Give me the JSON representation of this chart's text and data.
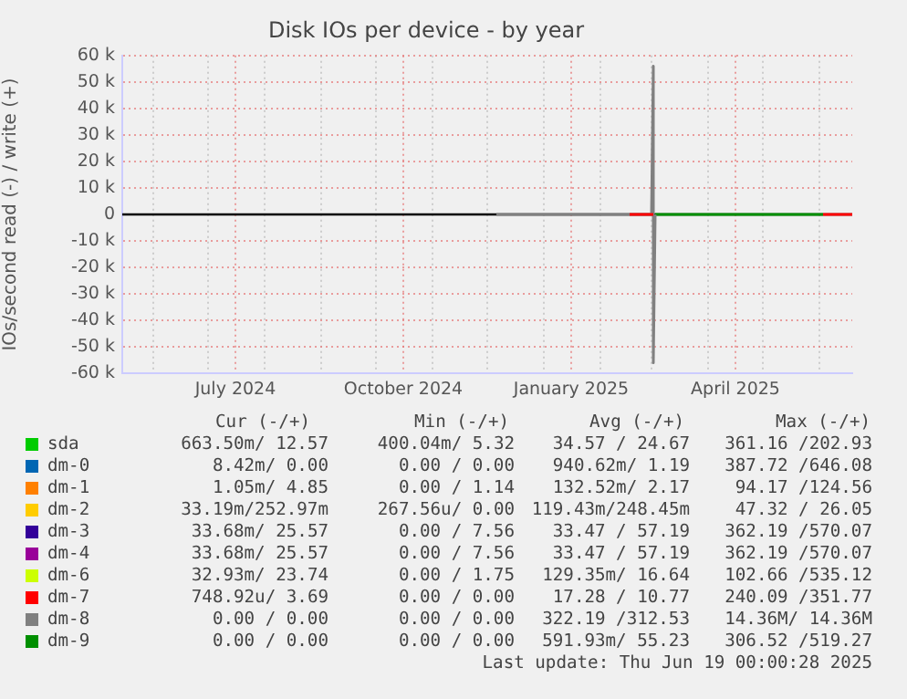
{
  "chart_data": {
    "type": "line",
    "title": "Disk IOs per device - by year",
    "ylabel": "IOs/second read (-) / write (+)",
    "xlim": [
      "2024-05-15",
      "2025-06-19"
    ],
    "xticks": [
      {
        "value": "2024-06-01",
        "label": null
      },
      {
        "value": "2024-07-01",
        "label": null
      },
      {
        "value": "2024-07-16",
        "label": "July 2024"
      },
      {
        "value": "2024-08-01",
        "label": null
      },
      {
        "value": "2024-09-01",
        "label": null
      },
      {
        "value": "2024-10-01",
        "label": null
      },
      {
        "value": "2024-10-16",
        "label": "October 2024"
      },
      {
        "value": "2024-11-01",
        "label": null
      },
      {
        "value": "2024-12-01",
        "label": null
      },
      {
        "value": "2025-01-01",
        "label": null
      },
      {
        "value": "2025-01-16",
        "label": "January 2025"
      },
      {
        "value": "2025-02-01",
        "label": null
      },
      {
        "value": "2025-03-01",
        "label": null
      },
      {
        "value": "2025-04-01",
        "label": null
      },
      {
        "value": "2025-04-16",
        "label": "April 2025"
      },
      {
        "value": "2025-05-01",
        "label": null
      },
      {
        "value": "2025-06-01",
        "label": null
      }
    ],
    "ylim": [
      -60000,
      60000
    ],
    "yticks": [
      {
        "value": -60000,
        "label": "-60 k"
      },
      {
        "value": -50000,
        "label": "-50 k"
      },
      {
        "value": -40000,
        "label": "-40 k"
      },
      {
        "value": -30000,
        "label": "-30 k"
      },
      {
        "value": -20000,
        "label": "-20 k"
      },
      {
        "value": -10000,
        "label": "-10 k"
      },
      0,
      {
        "value": 10000,
        "label": "10 k"
      },
      {
        "value": 20000,
        "label": "20 k"
      },
      {
        "value": 30000,
        "label": "30 k"
      },
      {
        "value": 40000,
        "label": "40 k"
      },
      {
        "value": 50000,
        "label": "50 k"
      },
      {
        "value": 60000,
        "label": "60 k"
      }
    ],
    "grid": true,
    "legend": "bottom",
    "ref_lines": [
      {
        "axis": "y",
        "value": 0,
        "color": "#000000"
      }
    ],
    "marker": "none",
    "line_style": "solid",
    "series": [
      {
        "name": "sda",
        "color": "#00cc00"
      },
      {
        "name": "dm-0",
        "color": "#0066b3"
      },
      {
        "name": "dm-1",
        "color": "#ff8000"
      },
      {
        "name": "dm-2",
        "color": "#ffcc00"
      },
      {
        "name": "dm-3",
        "color": "#330099"
      },
      {
        "name": "dm-4",
        "color": "#990099"
      },
      {
        "name": "dm-6",
        "color": "#ccff00"
      },
      {
        "name": "dm-7",
        "color": "#ff0000",
        "x": [
          "2025-02-17",
          "2025-03-02",
          "2025-03-03",
          "2025-06-03",
          "2025-06-19"
        ],
        "values": [
          0,
          0,
          null,
          0,
          0
        ]
      },
      {
        "name": "dm-8",
        "color": "#808080",
        "x": [
          "2024-12-06",
          "2025-03-01",
          "2025-03-02",
          "2025-03-02",
          "2025-03-03"
        ],
        "values": [
          0,
          0,
          56000,
          -56000,
          0
        ]
      },
      {
        "name": "dm-9",
        "color": "#008f00",
        "x": [
          "2025-03-03",
          "2025-06-03"
        ],
        "values": [
          0,
          0
        ]
      }
    ],
    "annotations": [
      "Cur (-/+)",
      "Min (-/+)",
      "Avg (-/+)",
      "Max (-/+)",
      "663.50m/ 12.57",
      "400.04m/ 5.32",
      "34.57 / 24.67",
      "361.16 /202.93",
      "8.42m/ 0.00",
      "0.00 / 0.00",
      "940.62m/ 1.19",
      "387.72 /646.08",
      "1.05m/ 4.85",
      "0.00 / 1.14",
      "132.52m/ 2.17",
      "94.17 /124.56",
      "33.19m/252.97m",
      "267.56u/ 0.00",
      "119.43m/248.45m",
      "47.32 / 26.05",
      "33.68m/ 25.57",
      "0.00 / 7.56",
      "33.47 / 57.19",
      "362.19 /570.07",
      "33.68m/ 25.57",
      "0.00 / 7.56",
      "33.47 / 57.19",
      "362.19 /570.07",
      "32.93m/ 23.74",
      "0.00 / 1.75",
      "129.35m/ 16.64",
      "102.66 /535.12",
      "748.92u/ 3.69",
      "0.00 / 0.00",
      "17.28 / 10.77",
      "240.09 /351.77",
      "0.00 / 0.00",
      "0.00 / 0.00",
      "322.19 /312.53",
      "14.36M/ 14.36M",
      "0.00 / 0.00",
      "0.00 / 0.00",
      "591.93m/ 55.23",
      "306.52 /519.27",
      "Last update: Thu Jun 19 00:00:28 2025"
    ]
  }
}
